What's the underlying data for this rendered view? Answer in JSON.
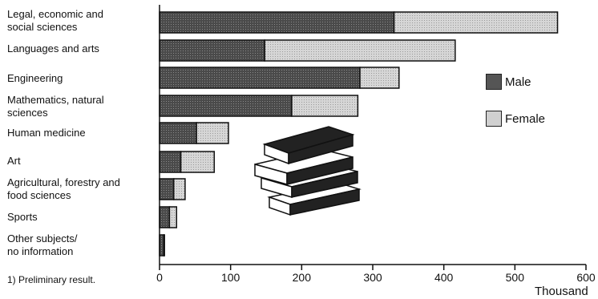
{
  "chart_data": {
    "type": "bar",
    "orientation": "horizontal",
    "stacked": true,
    "categories": [
      "Legal, economic and\nsocial sciences",
      "Languages and arts",
      "Engineering",
      "Mathematics, natural\nsciences",
      "Human medicine",
      "Art",
      "Agricultural, forestry and\nfood sciences",
      "Sports",
      "Other subjects/\nno information"
    ],
    "series": [
      {
        "name": "Male",
        "color": "#5a5a5a",
        "values": [
          330,
          148,
          282,
          186,
          52,
          30,
          20,
          14,
          6
        ]
      },
      {
        "name": "Female",
        "color": "#cfcfcf",
        "values": [
          230,
          268,
          55,
          93,
          45,
          47,
          16,
          10,
          1
        ]
      }
    ],
    "xlim": [
      0,
      600
    ],
    "xticks": [
      "0",
      "100",
      "200",
      "300",
      "400",
      "500",
      "600"
    ],
    "xlabel": "Thousand",
    "legend_position": "right",
    "footnote": "1) Preliminary result.",
    "grid": false
  }
}
